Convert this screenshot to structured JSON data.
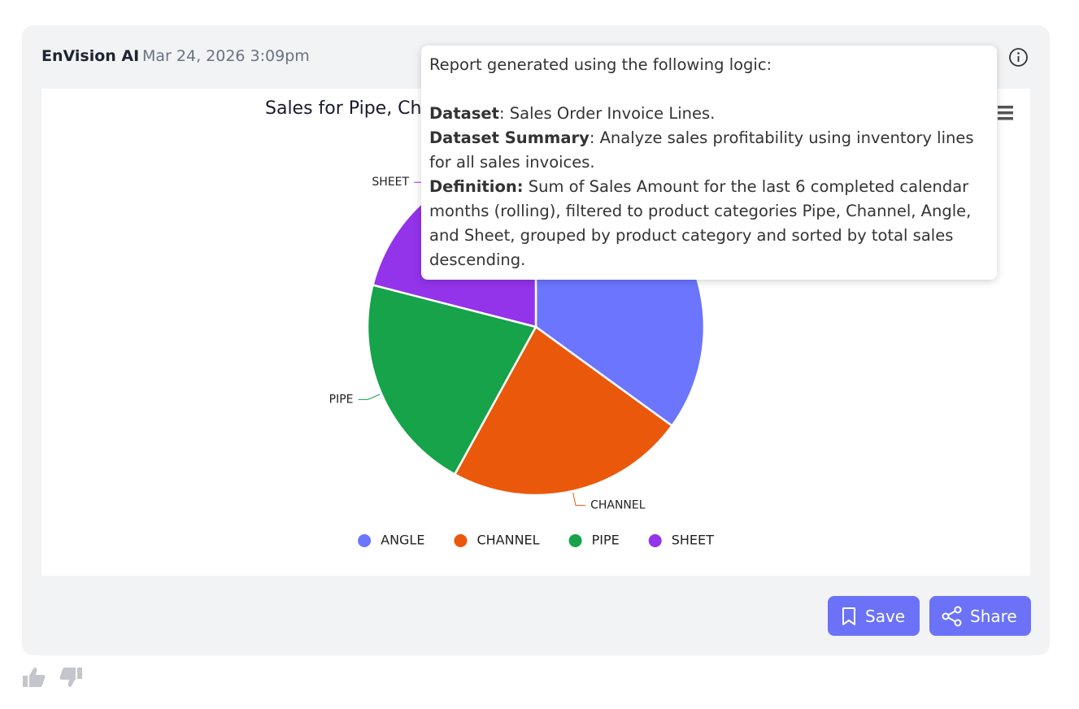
{
  "header": {
    "author": "EnVision AI",
    "timestamp": "Mar 24, 2026 3:09pm"
  },
  "chart_data": {
    "type": "pie",
    "title": "Sales for Pipe, Ch",
    "categories": [
      "ANGLE",
      "CHANNEL",
      "PIPE",
      "SHEET"
    ],
    "values": [
      35,
      23,
      21,
      21
    ],
    "colors": [
      "#6b75fe",
      "#ea580c",
      "#16a34a",
      "#9333ea"
    ],
    "legend": "bottom"
  },
  "tooltip": {
    "intro": "Report generated using the following logic:",
    "items": [
      {
        "label": "Dataset",
        "text": ": Sales Order Invoice Lines."
      },
      {
        "label": "Dataset Summary",
        "text": ": Analyze sales profitability using inventory lines for all sales invoices."
      },
      {
        "label": "Definition:",
        "text": " Sum of Sales Amount for the last 6 completed calendar months (rolling), filtered to product categories Pipe, Channel, Angle, and Sheet, grouped by product category and sorted by total sales descending."
      }
    ]
  },
  "buttons": {
    "save": "Save",
    "share": "Share"
  }
}
